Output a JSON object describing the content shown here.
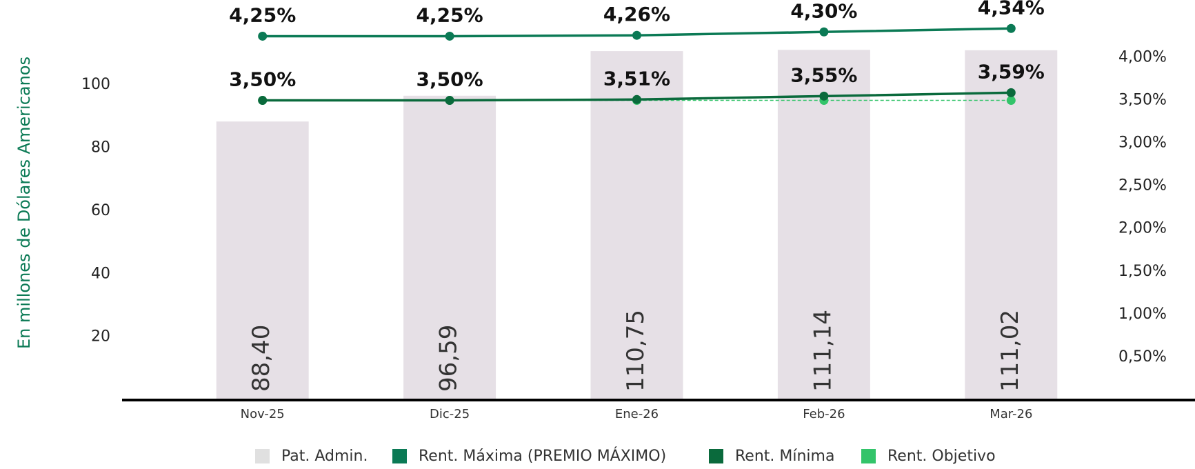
{
  "chart_data": {
    "type": "bar-line",
    "ylabel": "En millones de Dólares Americanos",
    "categories": [
      "Nov-25",
      "Dic-25",
      "Ene-26",
      "Feb-26",
      "Mar-26"
    ],
    "ylim": [
      0,
      125
    ],
    "yticks": [
      20,
      40,
      60,
      80,
      100
    ],
    "y2lim": [
      0,
      4.6
    ],
    "y2ticks": [
      {
        "value": 0.5,
        "label": "0,50%"
      },
      {
        "value": 1.0,
        "label": "1,00%"
      },
      {
        "value": 1.5,
        "label": "1,50%"
      },
      {
        "value": 2.0,
        "label": "2,00%"
      },
      {
        "value": 2.5,
        "label": "2,50%"
      },
      {
        "value": 3.0,
        "label": "3,00%"
      },
      {
        "value": 3.5,
        "label": "3,50%"
      },
      {
        "value": 4.0,
        "label": "4,00%"
      }
    ],
    "series": [
      {
        "name": "Pat. Admin.",
        "type": "bar",
        "color": "#e6e0e6",
        "values": [
          88.4,
          96.59,
          110.75,
          111.14,
          111.02
        ],
        "value_labels": [
          "88,40",
          "96,59",
          "110,75",
          "111,14",
          "111,02"
        ]
      },
      {
        "name": "Rent. Máxima (PREMIO MÁXIMO)",
        "type": "line",
        "axis": "y2",
        "color": "#0b7a55",
        "values": [
          4.25,
          4.25,
          4.26,
          4.3,
          4.34
        ],
        "value_labels": [
          "4,25%",
          "4,25%",
          "4,26%",
          "4,30%",
          "4,34%"
        ]
      },
      {
        "name": "Rent. Mínima",
        "type": "line",
        "axis": "y2",
        "color": "#0a6a3c",
        "values": [
          3.5,
          3.5,
          3.51,
          3.55,
          3.59
        ],
        "value_labels": [
          "3,50%",
          "3,50%",
          "3,51%",
          "3,55%",
          "3,59%"
        ]
      },
      {
        "name": "Rent. Objetivo",
        "type": "line",
        "axis": "y2",
        "dashed": true,
        "color": "#33c46a",
        "values": [
          3.5,
          3.5,
          3.5,
          3.5,
          3.5
        ]
      }
    ]
  }
}
